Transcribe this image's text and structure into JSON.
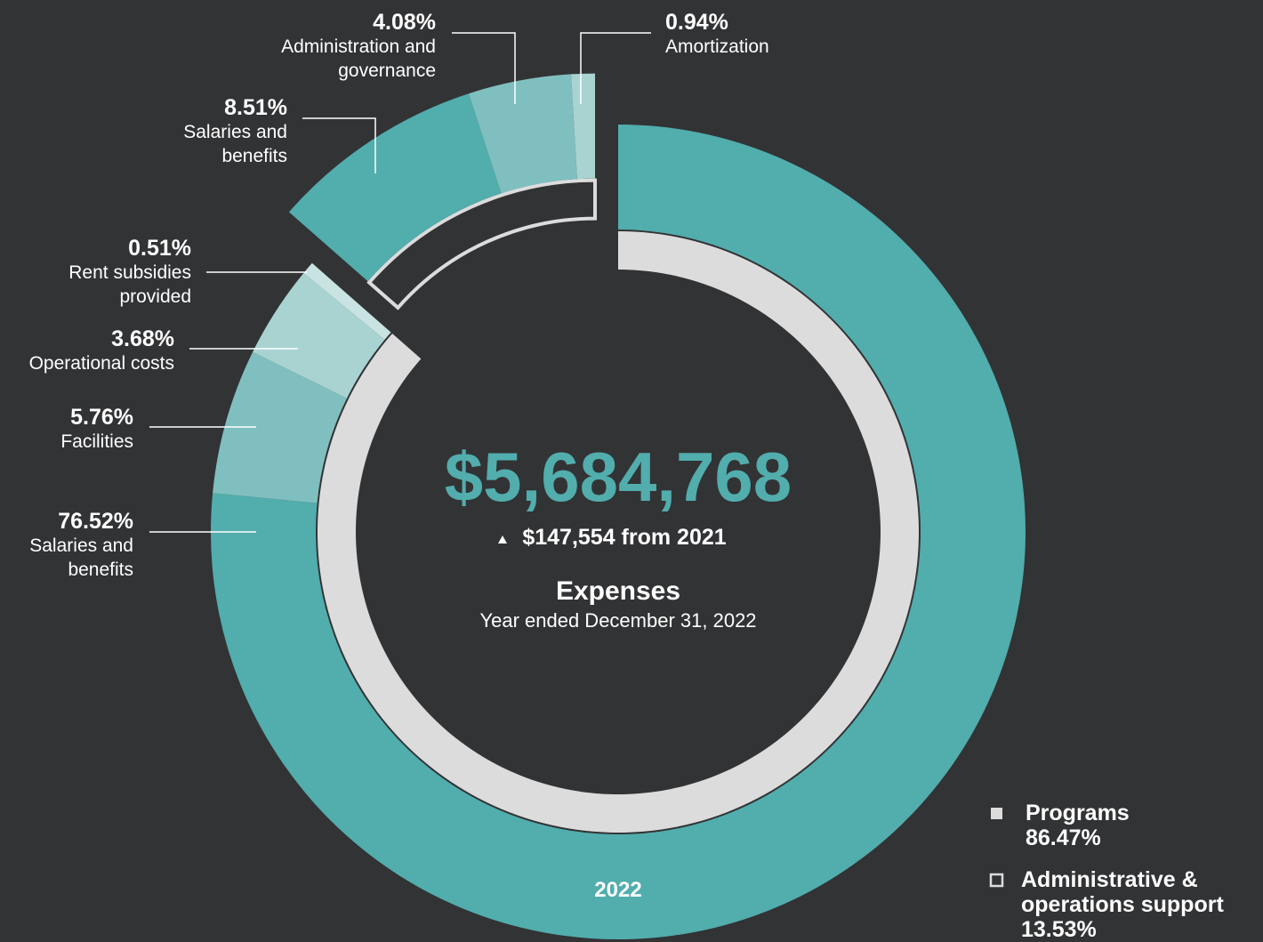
{
  "chart_data": {
    "type": "donut",
    "total": "$5,684,768",
    "change": "$147,554 from 2021",
    "title": "Expenses",
    "subtitle": "Year ended December 31, 2022",
    "ring_label": "2022",
    "groups": [
      {
        "name": "Programs",
        "value": 86.47,
        "value_label": "86.47%",
        "color": "#dcdcdd",
        "segments": [
          {
            "name": "Salaries and benefits",
            "value": 76.52,
            "value_label": "76.52%",
            "color": "#52adad"
          },
          {
            "name": "Facilities",
            "value": 5.76,
            "value_label": "5.76%",
            "color": "#80bfbf"
          },
          {
            "name": "Operational costs",
            "value": 3.68,
            "value_label": "3.68%",
            "color": "#a8d3d1"
          },
          {
            "name": "Rent subsidies provided",
            "value": 0.51,
            "value_label": "0.51%",
            "color": "#c8e3e1"
          }
        ]
      },
      {
        "name": "Administrative & operations support",
        "value": 13.53,
        "value_label": "13.53%",
        "color": "#323335",
        "segments": [
          {
            "name": "Salaries and benefits",
            "value": 8.51,
            "value_label": "8.51%",
            "color": "#52adad"
          },
          {
            "name": "Administration and governance",
            "value": 4.08,
            "value_label": "4.08%",
            "color": "#80bfbf"
          },
          {
            "name": "Amortization",
            "value": 0.94,
            "value_label": "0.94%",
            "color": "#a8d3d1"
          }
        ]
      }
    ]
  }
}
